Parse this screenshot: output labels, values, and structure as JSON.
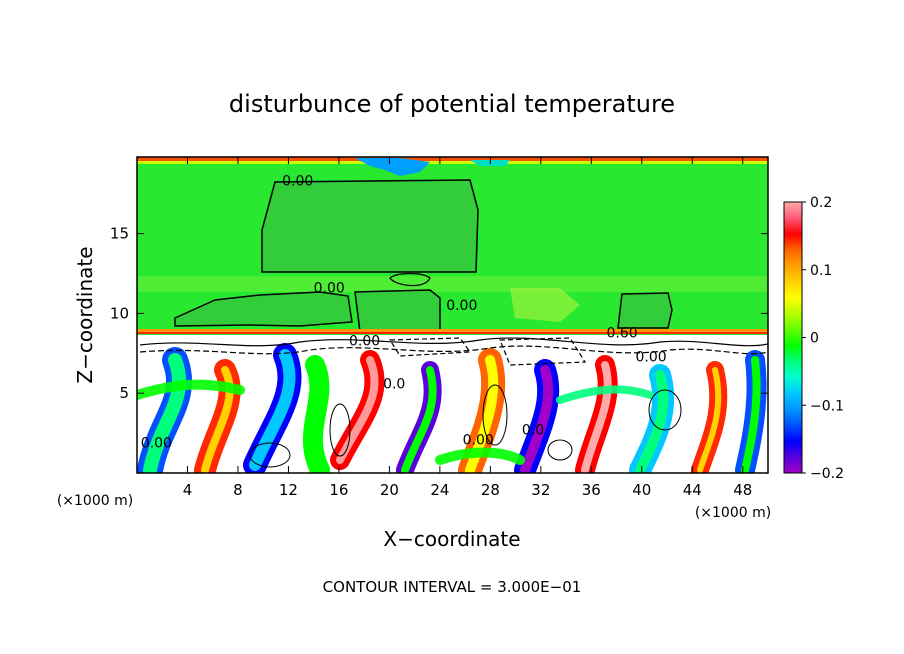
{
  "chart_data": {
    "type": "heatmap",
    "title": "disturbunce of potential temperature",
    "xlabel": "X−coordinate",
    "ylabel": "Z−coordinate",
    "x_unit_left": "(×1000 m)",
    "x_unit_right": "(×1000 m)",
    "xlim": [
      0,
      50
    ],
    "ylim": [
      0,
      19.8
    ],
    "xticks": [
      4,
      8,
      12,
      16,
      20,
      24,
      28,
      32,
      36,
      40,
      44,
      48
    ],
    "yticks": [
      5,
      10,
      15
    ],
    "footer": "CONTOUR INTERVAL = 3.000E−01",
    "colorbar": {
      "ticks": [
        0.2,
        0.1,
        0,
        -0.1,
        -0.2
      ],
      "tick_labels": [
        "0.2",
        "0.1",
        "0",
        "−0.1",
        "−0.2"
      ],
      "range": [
        -0.2,
        0.2
      ],
      "colors": [
        "#a000c8",
        "#5a00dc",
        "#0000ff",
        "#0050ff",
        "#0096ff",
        "#00c8ff",
        "#00ffd2",
        "#00ff7d",
        "#00ff00",
        "#64ff00",
        "#b4ff00",
        "#ffff00",
        "#ffd200",
        "#ffa000",
        "#ff6400",
        "#ff0000",
        "#ff5a78",
        "#ffaaaa"
      ]
    },
    "contour_labels": [
      {
        "text": "0.00",
        "x": 11.5,
        "y": 18.0
      },
      {
        "text": "0.00",
        "x": 14.0,
        "y": 11.3
      },
      {
        "text": "0.00",
        "x": 24.5,
        "y": 10.2
      },
      {
        "text": "0.00",
        "x": 16.8,
        "y": 8.0
      },
      {
        "text": "0.60",
        "x": 37.2,
        "y": 8.5
      },
      {
        "text": "0.00",
        "x": 39.5,
        "y": 7.0
      },
      {
        "text": "0.00",
        "x": 0.3,
        "y": 1.6
      },
      {
        "text": "0.00",
        "x": 25.8,
        "y": 1.8
      },
      {
        "text": "0.0",
        "x": 30.5,
        "y": 2.4
      },
      {
        "text": "0.0",
        "x": 19.5,
        "y": 5.3
      }
    ]
  }
}
